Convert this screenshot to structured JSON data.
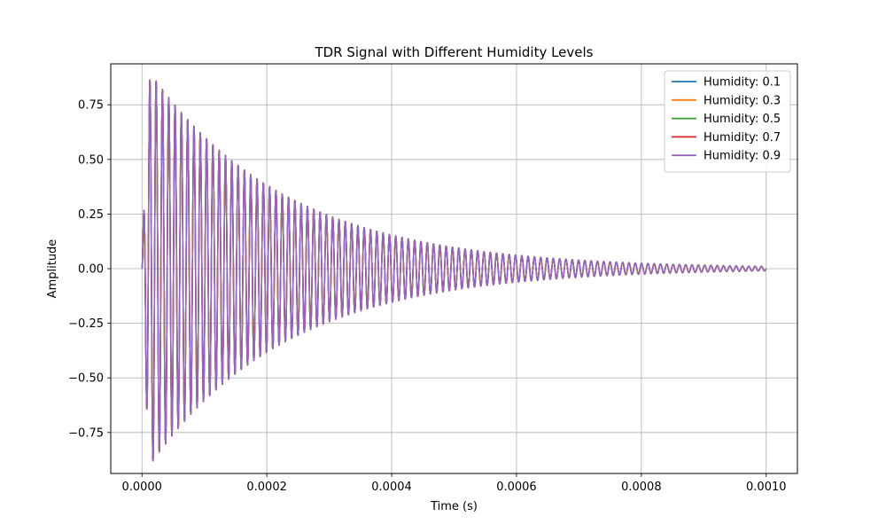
{
  "chart_data": {
    "type": "line",
    "title": "TDR Signal with Different Humidity Levels",
    "xlabel": "Time (s)",
    "ylabel": "Amplitude",
    "xlim": [
      -5e-05,
      0.00105
    ],
    "ylim": [
      -0.9375,
      0.9375
    ],
    "x_ticks": [
      0,
      0.0002,
      0.0004,
      0.0006,
      0.0008,
      0.001
    ],
    "x_tick_labels": [
      "0.0000",
      "0.0002",
      "0.0004",
      "0.0006",
      "0.0008",
      "0.0010"
    ],
    "y_ticks": [
      -0.75,
      -0.5,
      -0.25,
      0,
      0.25,
      0.5,
      0.75
    ],
    "y_tick_labels": [
      "−0.75",
      "−0.50",
      "−0.25",
      "0.00",
      "0.25",
      "0.50",
      "0.75"
    ],
    "grid": true,
    "legend_position": "top-right",
    "signal": {
      "x_start": 0,
      "x_end": 0.001,
      "envelope_peak": 0.89,
      "envelope_peak_time": 1.5e-05,
      "oscillation_period": 1.01e-05,
      "envelope_at_end": 0.01
    },
    "series": [
      {
        "name": "Humidity: 0.1",
        "color": "#1f77b4"
      },
      {
        "name": "Humidity: 0.3",
        "color": "#ff7f0e"
      },
      {
        "name": "Humidity: 0.5",
        "color": "#2ca02c"
      },
      {
        "name": "Humidity: 0.7",
        "color": "#d62728"
      },
      {
        "name": "Humidity: 0.9",
        "color": "#9467bd"
      }
    ]
  }
}
